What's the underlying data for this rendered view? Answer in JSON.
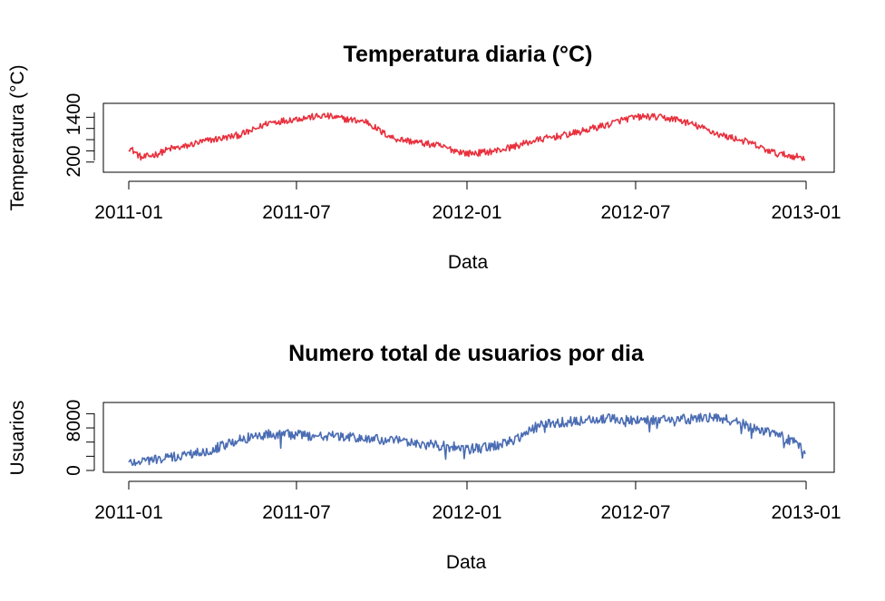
{
  "chart_data": [
    {
      "type": "line",
      "title": "Temperatura diaria (°C)",
      "xlabel": "Data",
      "ylabel": "Temperatura (°C)",
      "x_ticks": [
        "2011-01",
        "2011-07",
        "2012-01",
        "2012-07",
        "2013-01"
      ],
      "y_tick_labels": [
        "200",
        "1400"
      ],
      "ylim": [
        0,
        1700
      ],
      "color": "#E8303D",
      "series": [
        {
          "dates": [
            "2011-01-01",
            "2011-01-15",
            "2011-02-01",
            "2011-02-15",
            "2011-03-01",
            "2011-03-15",
            "2011-04-01",
            "2011-04-15",
            "2011-05-01",
            "2011-05-15",
            "2011-06-01",
            "2011-06-15",
            "2011-07-01",
            "2011-07-15",
            "2011-08-01",
            "2011-08-15",
            "2011-09-01",
            "2011-09-15",
            "2011-10-01",
            "2011-10-15",
            "2011-11-01",
            "2011-11-15",
            "2011-12-01",
            "2011-12-15",
            "2012-01-01",
            "2012-01-15",
            "2012-02-01",
            "2012-02-15",
            "2012-03-01",
            "2012-03-15",
            "2012-04-01",
            "2012-04-15",
            "2012-05-01",
            "2012-05-15",
            "2012-06-01",
            "2012-06-15",
            "2012-07-01",
            "2012-07-15",
            "2012-08-01",
            "2012-08-15",
            "2012-09-01",
            "2012-09-15",
            "2012-10-01",
            "2012-10-15",
            "2012-11-01",
            "2012-11-15",
            "2012-12-01",
            "2012-12-15",
            "2012-12-31"
          ],
          "values": [
            600,
            310,
            420,
            560,
            600,
            710,
            800,
            850,
            930,
            1050,
            1260,
            1300,
            1360,
            1400,
            1440,
            1380,
            1320,
            1280,
            1000,
            830,
            760,
            700,
            640,
            540,
            430,
            450,
            500,
            580,
            680,
            780,
            860,
            920,
            1000,
            1100,
            1200,
            1320,
            1400,
            1420,
            1380,
            1340,
            1200,
            1080,
            920,
            840,
            720,
            560,
            420,
            370,
            310
          ],
          "noise": 180
        }
      ]
    },
    {
      "type": "line",
      "title": "Numero total de usuarios por dia",
      "xlabel": "Data",
      "ylabel": "Usuarios",
      "x_ticks": [
        "2011-01",
        "2011-07",
        "2012-01",
        "2012-07",
        "2013-01"
      ],
      "y_tick_labels": [
        "0",
        "8000"
      ],
      "ylim": [
        0,
        9200
      ],
      "color": "#4A6CB3",
      "series": [
        {
          "dates": [
            "2011-01-01",
            "2011-01-15",
            "2011-02-01",
            "2011-02-15",
            "2011-03-01",
            "2011-03-15",
            "2011-04-01",
            "2011-04-15",
            "2011-05-01",
            "2011-05-15",
            "2011-06-01",
            "2011-06-15",
            "2011-07-01",
            "2011-07-15",
            "2011-08-01",
            "2011-08-15",
            "2011-09-01",
            "2011-09-15",
            "2011-10-01",
            "2011-10-15",
            "2011-11-01",
            "2011-11-15",
            "2011-12-01",
            "2011-12-15",
            "2012-01-01",
            "2012-01-15",
            "2012-02-01",
            "2012-02-15",
            "2012-03-01",
            "2012-03-15",
            "2012-04-01",
            "2012-04-15",
            "2012-05-01",
            "2012-05-15",
            "2012-06-01",
            "2012-06-15",
            "2012-07-01",
            "2012-07-15",
            "2012-08-01",
            "2012-08-15",
            "2012-09-01",
            "2012-09-15",
            "2012-10-01",
            "2012-10-15",
            "2012-11-01",
            "2012-11-15",
            "2012-12-01",
            "2012-12-15",
            "2012-12-31"
          ],
          "values": [
            1100,
            1400,
            1600,
            1800,
            2100,
            2500,
            3000,
            3600,
            4300,
            4800,
            5100,
            5100,
            5000,
            4900,
            4900,
            4800,
            4600,
            4500,
            4300,
            4200,
            3900,
            3700,
            3500,
            3400,
            3000,
            3100,
            3500,
            4000,
            4900,
            6100,
            6700,
            6800,
            7000,
            7200,
            7300,
            7200,
            7100,
            7100,
            7200,
            7200,
            7300,
            7400,
            7300,
            7000,
            6200,
            5700,
            5100,
            4200,
            3000
          ],
          "noise": 1400
        }
      ]
    }
  ]
}
